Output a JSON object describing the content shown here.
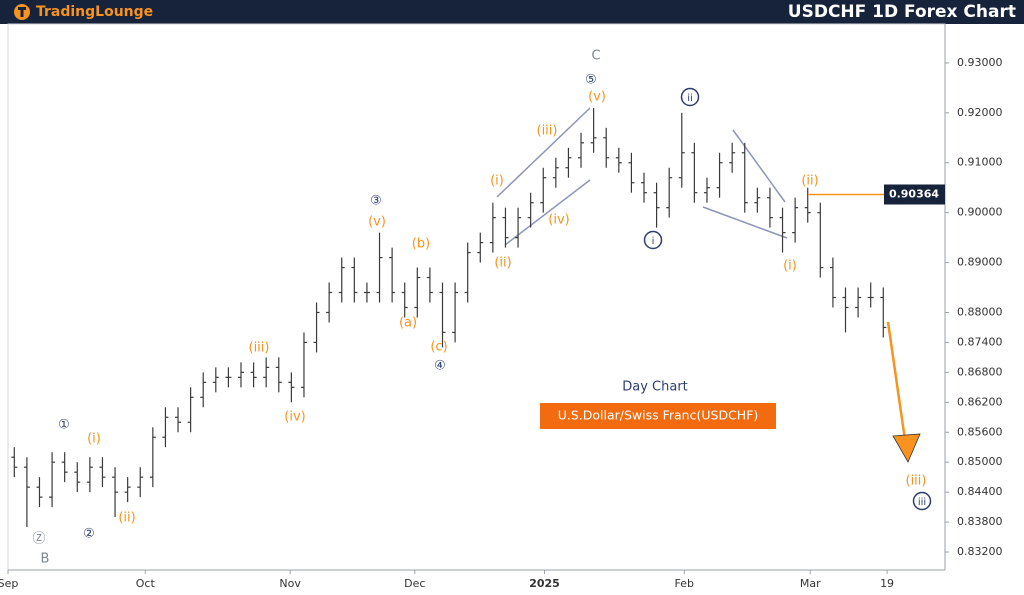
{
  "header": {
    "brand": "TradingLounge",
    "title": "USDCHF 1D Forex Chart"
  },
  "chart_data": {
    "type": "ohlc",
    "subtitle": "Day Chart",
    "instrument": "U.S.Dollar/Swiss Franc(USDCHF)",
    "open": [
      0.851,
      0.849,
      0.845,
      0.843,
      0.85,
      0.848,
      0.846,
      0.849,
      0.847,
      0.844,
      0.845,
      0.847,
      0.855,
      0.859,
      0.858,
      0.863,
      0.866,
      0.867,
      0.867,
      0.868,
      0.867,
      0.869,
      0.866,
      0.865,
      0.874,
      0.88,
      0.884,
      0.889,
      0.884,
      0.884,
      0.891,
      0.884,
      0.881,
      0.887,
      0.884,
      0.876,
      0.884,
      0.892,
      0.894,
      0.899,
      0.895,
      0.899,
      0.902,
      0.907,
      0.909,
      0.911,
      0.914,
      0.915,
      0.911,
      0.91,
      0.906,
      0.904,
      0.901,
      0.907,
      0.912,
      0.904,
      0.905,
      0.91,
      0.912,
      0.902,
      0.903,
      0.899,
      0.896,
      0.901,
      0.9,
      0.889,
      0.883,
      0.881,
      0.883,
      0.883
    ],
    "high": [
      0.853,
      0.851,
      0.847,
      0.852,
      0.852,
      0.85,
      0.851,
      0.851,
      0.849,
      0.847,
      0.849,
      0.857,
      0.861,
      0.861,
      0.865,
      0.868,
      0.869,
      0.869,
      0.87,
      0.87,
      0.871,
      0.871,
      0.868,
      0.876,
      0.882,
      0.886,
      0.891,
      0.891,
      0.886,
      0.896,
      0.893,
      0.886,
      0.889,
      0.889,
      0.886,
      0.886,
      0.894,
      0.896,
      0.902,
      0.901,
      0.901,
      0.904,
      0.909,
      0.911,
      0.913,
      0.916,
      0.921,
      0.917,
      0.913,
      0.912,
      0.908,
      0.906,
      0.909,
      0.92,
      0.914,
      0.907,
      0.912,
      0.914,
      0.914,
      0.905,
      0.905,
      0.901,
      0.903,
      0.905,
      0.902,
      0.891,
      0.885,
      0.885,
      0.886,
      0.885
    ],
    "low": [
      0.847,
      0.837,
      0.841,
      0.841,
      0.846,
      0.844,
      0.844,
      0.845,
      0.839,
      0.842,
      0.843,
      0.845,
      0.853,
      0.856,
      0.856,
      0.861,
      0.864,
      0.865,
      0.865,
      0.865,
      0.865,
      0.864,
      0.862,
      0.863,
      0.872,
      0.878,
      0.882,
      0.882,
      0.882,
      0.882,
      0.882,
      0.879,
      0.879,
      0.882,
      0.873,
      0.874,
      0.882,
      0.89,
      0.892,
      0.893,
      0.893,
      0.897,
      0.9,
      0.905,
      0.907,
      0.909,
      0.912,
      0.909,
      0.908,
      0.904,
      0.902,
      0.897,
      0.899,
      0.905,
      0.902,
      0.902,
      0.903,
      0.908,
      0.9,
      0.9,
      0.897,
      0.892,
      0.894,
      0.898,
      0.887,
      0.881,
      0.876,
      0.879,
      0.881,
      0.875
    ],
    "close": [
      0.849,
      0.845,
      0.843,
      0.85,
      0.848,
      0.846,
      0.849,
      0.847,
      0.844,
      0.845,
      0.847,
      0.855,
      0.859,
      0.858,
      0.863,
      0.866,
      0.867,
      0.867,
      0.868,
      0.867,
      0.869,
      0.866,
      0.865,
      0.874,
      0.88,
      0.884,
      0.889,
      0.884,
      0.884,
      0.891,
      0.884,
      0.881,
      0.887,
      0.884,
      0.876,
      0.884,
      0.892,
      0.894,
      0.899,
      0.895,
      0.899,
      0.902,
      0.907,
      0.909,
      0.911,
      0.914,
      0.915,
      0.911,
      0.91,
      0.906,
      0.904,
      0.901,
      0.907,
      0.912,
      0.904,
      0.905,
      0.91,
      0.912,
      0.902,
      0.903,
      0.899,
      0.896,
      0.901,
      0.9,
      0.889,
      0.883,
      0.881,
      0.883,
      0.883,
      0.877
    ],
    "color": "#3a3a3a",
    "xlim": [
      0,
      74.4
    ],
    "xticks": [
      {
        "value": 0,
        "label": "Sep"
      },
      {
        "value": 10.9,
        "label": "Oct"
      },
      {
        "value": 22.4,
        "label": "Nov"
      },
      {
        "value": 32.3,
        "label": "Dec"
      },
      {
        "value": 42.6,
        "label": "2025"
      },
      {
        "value": 53.7,
        "label": "Feb"
      },
      {
        "value": 63.7,
        "label": "Mar"
      },
      {
        "value": 69.8,
        "label": "19"
      }
    ],
    "ylim": [
      0.8284,
      0.9378
    ],
    "yticks": [
      {
        "value": 0.93,
        "label": "0.93000"
      },
      {
        "value": 0.92,
        "label": "0.92000"
      },
      {
        "value": 0.91,
        "label": "0.91000"
      },
      {
        "value": 0.9,
        "label": "0.90000"
      },
      {
        "value": 0.89,
        "label": "0.89000"
      },
      {
        "value": 0.88,
        "label": "0.88000"
      },
      {
        "value": 0.874,
        "label": "0.87400"
      },
      {
        "value": 0.868,
        "label": "0.86800"
      },
      {
        "value": 0.862,
        "label": "0.86200"
      },
      {
        "value": 0.856,
        "label": "0.85600"
      },
      {
        "value": 0.85,
        "label": "0.85000"
      },
      {
        "value": 0.844,
        "label": "0.84400"
      },
      {
        "value": 0.838,
        "label": "0.83800"
      },
      {
        "value": 0.832,
        "label": "0.83200"
      }
    ],
    "price_line": 0.90364,
    "annotations": [
      {
        "text": "C",
        "color": "#7d8590"
      },
      {
        "text": "⑤",
        "color": "#2e3f6e"
      },
      {
        "text": "(v)",
        "color": "#f7931e"
      },
      {
        "text": "ii",
        "color": "#2e3f6e",
        "circled": true
      },
      {
        "text": "(iii)",
        "color": "#f7931e"
      },
      {
        "text": "(i)",
        "color": "#f7931e"
      },
      {
        "text": "(iv)",
        "color": "#f7931e"
      },
      {
        "text": "(ii)",
        "color": "#f7931e"
      },
      {
        "text": "i",
        "color": "#2e3f6e",
        "circled": true
      },
      {
        "text": "(ii)",
        "color": "#f7931e"
      },
      {
        "text": "(i)",
        "color": "#f7931e"
      },
      {
        "text": "③",
        "color": "#2e3f6e"
      },
      {
        "text": "(v)",
        "color": "#f7931e"
      },
      {
        "text": "(b)",
        "color": "#f7931e"
      },
      {
        "text": "(a)",
        "color": "#f7931e"
      },
      {
        "text": "(c)",
        "color": "#f7931e"
      },
      {
        "text": "④",
        "color": "#2e3f6e"
      },
      {
        "text": "(iii)",
        "color": "#f7931e"
      },
      {
        "text": "(iv)",
        "color": "#f7931e"
      },
      {
        "text": "①",
        "color": "#2e3f6e"
      },
      {
        "text": "(i)",
        "color": "#f7931e"
      },
      {
        "text": "(ii)",
        "color": "#f7931e"
      },
      {
        "text": "②",
        "color": "#2e3f6e"
      },
      {
        "text": "Ⓩ",
        "color": "#7d8590"
      },
      {
        "text": "B",
        "color": "#7d8590"
      },
      {
        "text": "(iii)",
        "color": "#f7931e"
      },
      {
        "text": "iii",
        "color": "#2e3f6e",
        "circled": true
      }
    ]
  }
}
